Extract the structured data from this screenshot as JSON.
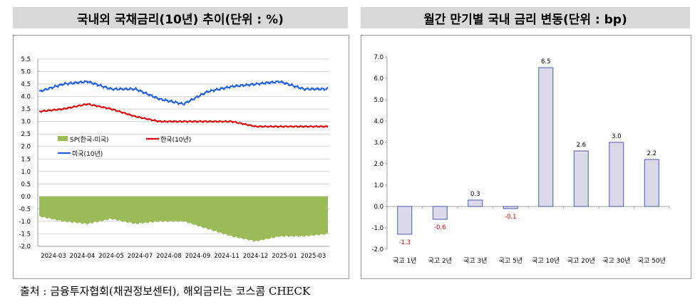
{
  "left_title": "국내외 국채금리(10년) 추이(단위 : %)",
  "right_title": "월간 만기별 국내 금리 변동(단위 : bp)",
  "source": "출처 : 금융투자협회(채권정보센터), 해외금리는 코스콤 CHECK",
  "colors": {
    "sp": "#9bbb59",
    "korea": "#e00000",
    "us": "#1f5fe0",
    "bar_fill": "#dcdaea",
    "bar_stroke": "#4f5aa8",
    "neg_label": "#d00000"
  },
  "chart_data": [
    {
      "type": "line",
      "title": "국내외 국채금리(10년) 추이(단위 : %)",
      "ylim": [
        -2.0,
        5.5
      ],
      "yticks": [
        "5.5",
        "5.0",
        "4.5",
        "4.0",
        "3.5",
        "3.0",
        "2.5",
        "2.0",
        "1.5",
        "1.0",
        "0.5",
        "0.0",
        "-0.5",
        "-1.0",
        "-1.5",
        "-2.0"
      ],
      "xticks": [
        "2024-03",
        "2024-04",
        "2024-05",
        "2024-07",
        "2024-08",
        "2024-09",
        "2024-11",
        "2024-12",
        "2025-01",
        "2025-03"
      ],
      "grid": true,
      "legend_position": "middle-left",
      "x": [
        "2024-03",
        "2024-04",
        "2024-05",
        "2024-06",
        "2024-07",
        "2024-08",
        "2024-09",
        "2024-10",
        "2024-11",
        "2024-12",
        "2025-01",
        "2025-02",
        "2025-03"
      ],
      "series": [
        {
          "name": "SP(한국-미국)",
          "kind": "area",
          "values": [
            -0.8,
            -1.0,
            -1.1,
            -0.9,
            -1.1,
            -1.0,
            -1.0,
            -1.3,
            -1.6,
            -1.8,
            -1.6,
            -1.6,
            -1.5
          ]
        },
        {
          "name": "한국(10년)",
          "kind": "line",
          "values": [
            3.4,
            3.5,
            3.7,
            3.5,
            3.2,
            3.0,
            3.0,
            3.0,
            3.0,
            2.8,
            2.8,
            2.8,
            2.8
          ]
        },
        {
          "name": "미국(10년)",
          "kind": "line",
          "values": [
            4.2,
            4.5,
            4.6,
            4.3,
            4.3,
            3.9,
            3.7,
            4.2,
            4.4,
            4.5,
            4.6,
            4.3,
            4.3
          ]
        }
      ]
    },
    {
      "type": "bar",
      "title": "월간 만기별 국내 금리 변동(단위 : bp)",
      "categories": [
        "국고 1년",
        "국고 2년",
        "국고 3년",
        "국고 5년",
        "국고 10년",
        "국고 20년",
        "국고 30년",
        "국고 50년"
      ],
      "values": [
        -1.3,
        -0.6,
        0.3,
        -0.1,
        6.5,
        2.6,
        3.0,
        2.2
      ],
      "data_labels": [
        "-1.3",
        "-0.6",
        "0.3",
        "-0.1",
        "6.5",
        "2.6",
        "3.0",
        "2.2"
      ],
      "ylim": [
        -2.0,
        7.0
      ],
      "yticks": [
        "7.0",
        "6.0",
        "5.0",
        "4.0",
        "3.0",
        "2.0",
        "1.0",
        "0.0",
        "-1.0",
        "-2.0"
      ]
    }
  ]
}
